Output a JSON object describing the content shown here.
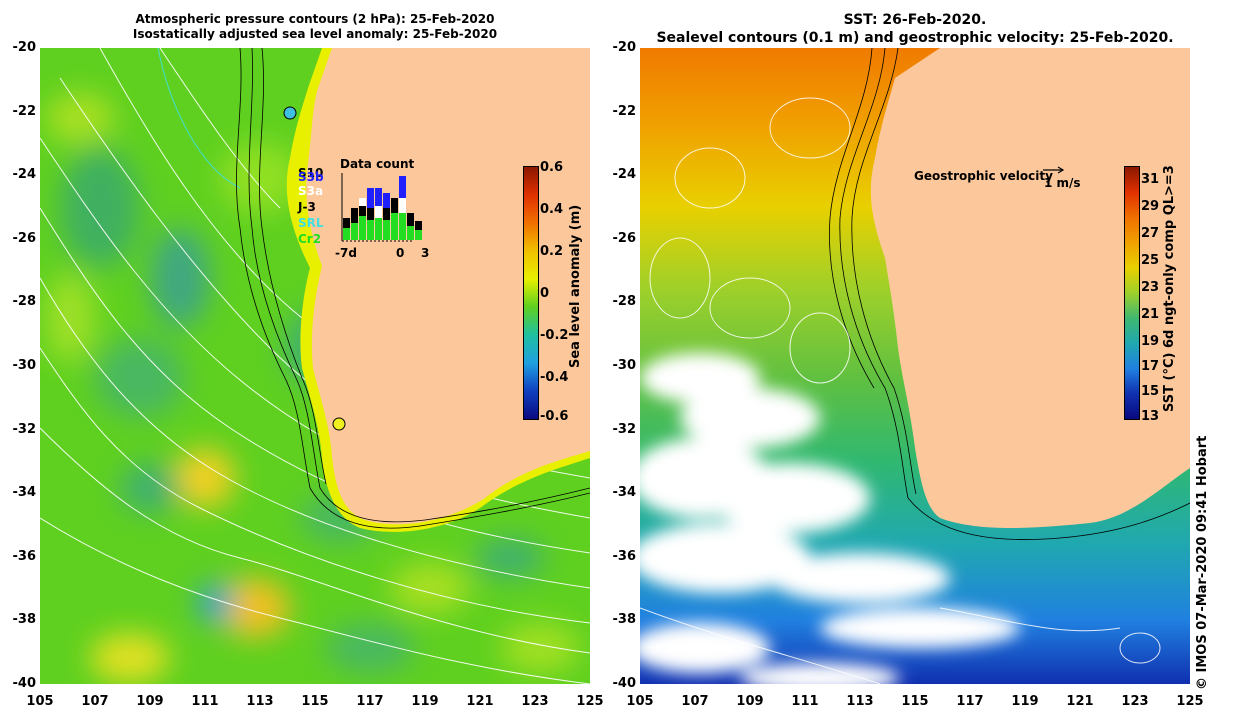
{
  "left_panel": {
    "title_line1": "Atmospheric pressure contours (2 hPa): 25-Feb-2020",
    "title_line2": "Isostatically adjusted sea level anomaly: 25-Feb-2020",
    "colorbar": {
      "label": "Sea level anomaly (m)",
      "ticks": [
        "0.6",
        "0.4",
        "0.2",
        "0",
        "-0.2",
        "-0.4",
        "-0.6"
      ]
    },
    "data_count": {
      "title": "Data count",
      "satellites": [
        "S10",
        "S3b",
        "S3a",
        "J-3",
        "SRL",
        "Cr2"
      ],
      "axis_labels": [
        "-7d",
        "0",
        "3"
      ]
    },
    "tide_gauges": [
      {
        "lon": 114.2,
        "lat": -22.0,
        "color": "#40c0e0"
      },
      {
        "lon": 115.9,
        "lat": -31.8,
        "color": "#f0f020"
      }
    ]
  },
  "right_panel": {
    "title_line1": "SST: 26-Feb-2020.",
    "title_line2": "Sealevel contours (0.1 m) and geostrophic velocity: 25-Feb-2020.",
    "colorbar": {
      "label": "SST (°C) 6d ngt-only comp QL>=3",
      "ticks": [
        "31",
        "29",
        "27",
        "25",
        "23",
        "21",
        "19",
        "17",
        "15",
        "13"
      ]
    },
    "velocity_legend": {
      "label": "Geostrophic velocity",
      "scale": "1 m/s"
    }
  },
  "axes": {
    "lat_ticks": [
      "-20",
      "-22",
      "-24",
      "-26",
      "-28",
      "-30",
      "-32",
      "-34",
      "-36",
      "-38",
      "-40"
    ],
    "lon_ticks": [
      "105",
      "107",
      "109",
      "111",
      "113",
      "115",
      "117",
      "119",
      "121",
      "123",
      "125"
    ],
    "lon_range": [
      105,
      125
    ],
    "lat_range": [
      -40,
      -20
    ]
  },
  "credit": "© IMOS 07-Mar-2020 09:41 Hobart",
  "colors": {
    "land": "#fcc89b",
    "ocean_left": "#5fd020",
    "coast_band": "#e8f000"
  }
}
